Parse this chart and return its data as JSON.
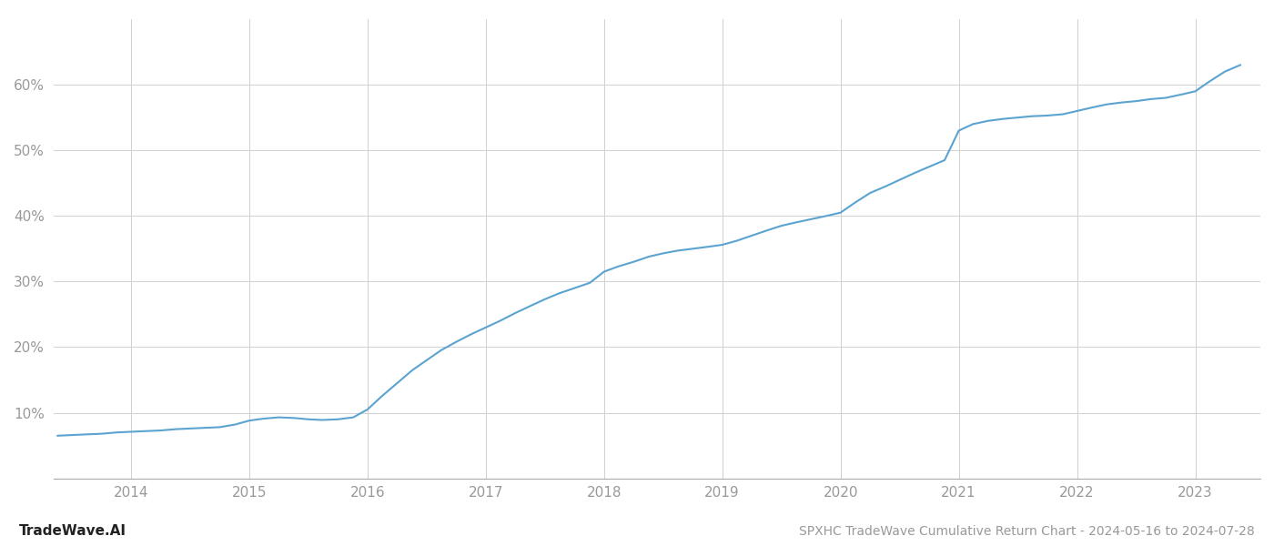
{
  "title": "SPXHC TradeWave Cumulative Return Chart - 2024-05-16 to 2024-07-28",
  "watermark": "TradeWave.AI",
  "line_color": "#5ba3d0",
  "background_color": "#ffffff",
  "grid_color": "#d0d0d0",
  "tick_color": "#999999",
  "x_values": [
    2013.38,
    2013.5,
    2013.62,
    2013.75,
    2013.88,
    2014.0,
    2014.12,
    2014.25,
    2014.38,
    2014.5,
    2014.62,
    2014.75,
    2014.88,
    2015.0,
    2015.12,
    2015.25,
    2015.38,
    2015.5,
    2015.62,
    2015.75,
    2015.88,
    2016.0,
    2016.12,
    2016.25,
    2016.38,
    2016.5,
    2016.62,
    2016.75,
    2016.88,
    2017.0,
    2017.12,
    2017.25,
    2017.38,
    2017.5,
    2017.62,
    2017.75,
    2017.88,
    2018.0,
    2018.12,
    2018.25,
    2018.38,
    2018.5,
    2018.62,
    2018.75,
    2018.88,
    2019.0,
    2019.12,
    2019.25,
    2019.38,
    2019.5,
    2019.62,
    2019.75,
    2019.88,
    2020.0,
    2020.12,
    2020.25,
    2020.38,
    2020.5,
    2020.62,
    2020.75,
    2020.88,
    2021.0,
    2021.12,
    2021.25,
    2021.38,
    2021.5,
    2021.62,
    2021.75,
    2021.88,
    2022.0,
    2022.12,
    2022.25,
    2022.38,
    2022.5,
    2022.62,
    2022.75,
    2022.88,
    2023.0,
    2023.12,
    2023.25,
    2023.38
  ],
  "y_values": [
    6.5,
    6.6,
    6.7,
    6.8,
    7.0,
    7.1,
    7.2,
    7.3,
    7.5,
    7.6,
    7.7,
    7.8,
    8.2,
    8.8,
    9.1,
    9.3,
    9.2,
    9.0,
    8.9,
    9.0,
    9.3,
    10.5,
    12.5,
    14.5,
    16.5,
    18.0,
    19.5,
    20.8,
    22.0,
    23.0,
    24.0,
    25.2,
    26.3,
    27.3,
    28.2,
    29.0,
    29.8,
    31.5,
    32.3,
    33.0,
    33.8,
    34.3,
    34.7,
    35.0,
    35.3,
    35.6,
    36.2,
    37.0,
    37.8,
    38.5,
    39.0,
    39.5,
    40.0,
    40.5,
    42.0,
    43.5,
    44.5,
    45.5,
    46.5,
    47.5,
    48.5,
    53.0,
    54.0,
    54.5,
    54.8,
    55.0,
    55.2,
    55.3,
    55.5,
    56.0,
    56.5,
    57.0,
    57.3,
    57.5,
    57.8,
    58.0,
    58.5,
    59.0,
    60.5,
    62.0,
    63.0
  ],
  "x_ticks": [
    2014,
    2015,
    2016,
    2017,
    2018,
    2019,
    2020,
    2021,
    2022,
    2023
  ],
  "y_ticks": [
    10,
    20,
    30,
    40,
    50,
    60
  ],
  "xlim": [
    2013.35,
    2023.55
  ],
  "ylim": [
    0,
    70
  ],
  "line_width": 1.5,
  "title_fontsize": 10,
  "tick_fontsize": 11,
  "watermark_fontsize": 11
}
